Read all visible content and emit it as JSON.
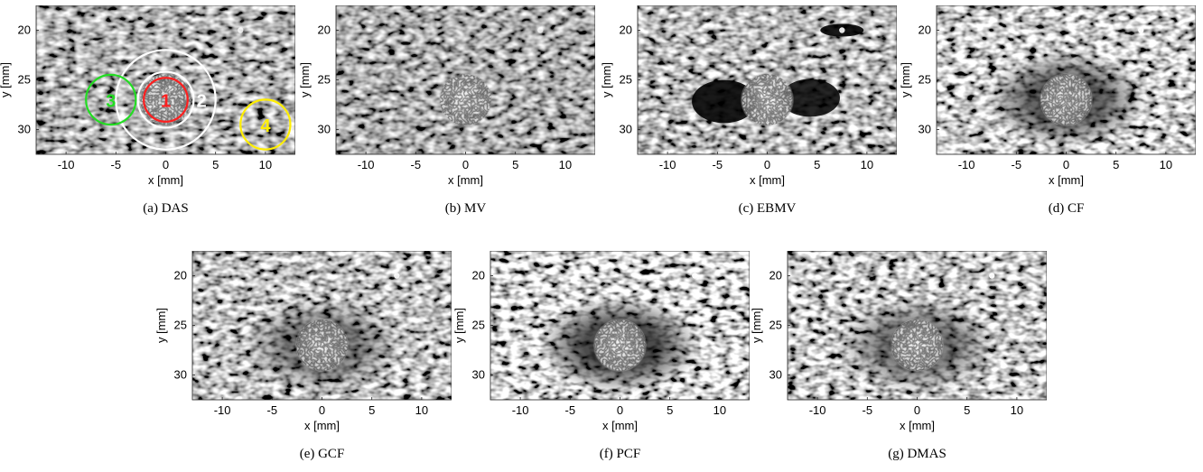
{
  "axes": {
    "xlabel": "x [mm]",
    "ylabel": "y [mm]",
    "xticks": [
      -10,
      -5,
      0,
      5,
      10
    ],
    "yticks": [
      20,
      25,
      30
    ],
    "xlim": [
      -13,
      13
    ],
    "ylim": [
      17.5,
      32.5
    ]
  },
  "features": {
    "cyst": {
      "x": 0,
      "y": 27,
      "r": 2.7
    },
    "point_target": {
      "x": 7.5,
      "y": 20
    }
  },
  "roi_circles": [
    {
      "label": "1",
      "color": "#ff1f1f",
      "x": 0,
      "y": 27,
      "r": 2.2
    },
    {
      "label": "2",
      "color": "#ffffff",
      "x": 0,
      "y": 27,
      "r": 5.0
    },
    {
      "label": "",
      "color": "#ffffff",
      "x": 0,
      "y": 27,
      "r": 2.8
    },
    {
      "label": "3",
      "color": "#22dd22",
      "x": -5.5,
      "y": 27,
      "r": 2.5
    },
    {
      "label": "4",
      "color": "#ffee00",
      "x": 10,
      "y": 29.5,
      "r": 2.5
    }
  ],
  "panels": [
    {
      "id": "das",
      "caption": "(a) DAS",
      "style": "das",
      "annotated": true
    },
    {
      "id": "mv",
      "caption": "(b) MV",
      "style": "mv",
      "annotated": false
    },
    {
      "id": "ebmv",
      "caption": "(c) EBMV",
      "style": "ebmv",
      "annotated": false
    },
    {
      "id": "cf",
      "caption": "(d) CF",
      "style": "cf",
      "annotated": false
    },
    {
      "id": "gcf",
      "caption": "(e) GCF",
      "style": "gcf",
      "annotated": false
    },
    {
      "id": "pcf",
      "caption": "(f) PCF",
      "style": "pcf",
      "annotated": false
    },
    {
      "id": "dmas",
      "caption": "(g) DMAS",
      "style": "dmas",
      "annotated": false
    }
  ]
}
